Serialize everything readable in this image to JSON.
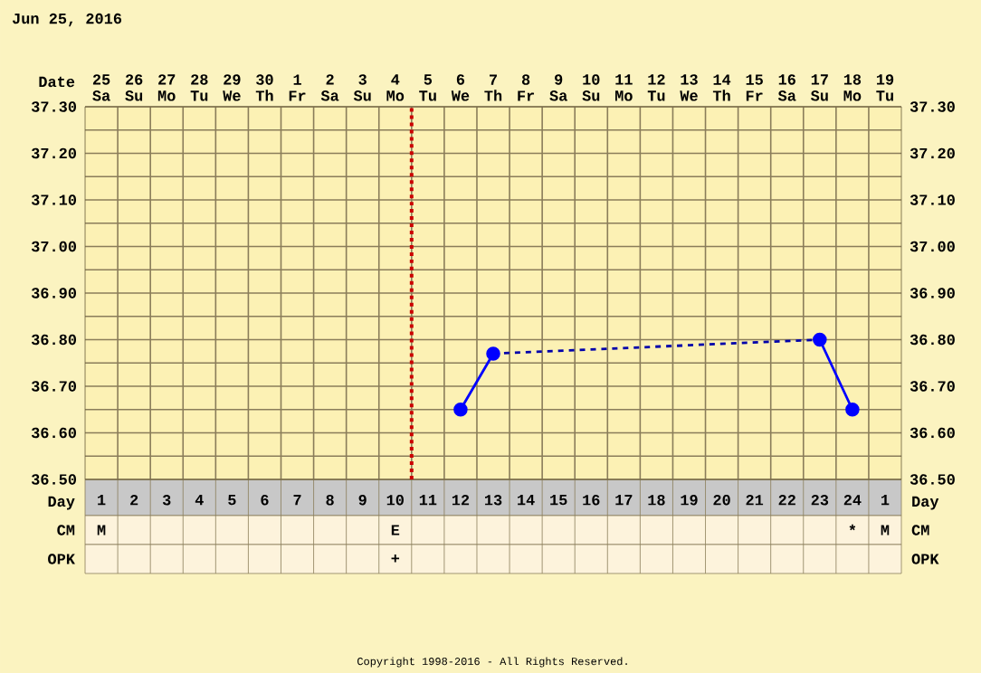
{
  "chart_data": [
    {
      "type": "line",
      "title": "Jun 25, 2016",
      "xlabel": "Day",
      "x2label": "Date",
      "categories": [
        "1",
        "2",
        "3",
        "4",
        "5",
        "6",
        "7",
        "8",
        "9",
        "10",
        "11",
        "12",
        "13",
        "14",
        "15",
        "16",
        "17",
        "18",
        "19",
        "20",
        "21",
        "22",
        "23",
        "24",
        "1"
      ],
      "series": [
        {
          "color": "#0000ff",
          "marker": "circle",
          "line_style": "solid",
          "values": [
            null,
            null,
            null,
            null,
            null,
            null,
            null,
            null,
            null,
            null,
            null,
            36.65,
            36.77,
            null,
            null,
            null,
            null,
            null,
            null,
            null,
            null,
            null,
            36.8,
            36.65,
            null
          ]
        },
        {
          "color": "#0000aa",
          "marker": "none",
          "line_style": "dashed",
          "x": [
            "13",
            "23"
          ],
          "values": [
            36.77,
            36.8
          ]
        }
      ],
      "x2lim": [
        "2016-06-24T12:00",
        "2016-07-19T12:00"
      ],
      "x2ticks": [
        {
          "value": "2016-06-25",
          "label": "25 Sa"
        },
        {
          "value": "2016-06-26",
          "label": "26 Su"
        },
        {
          "value": "2016-06-27",
          "label": "27 Mo"
        },
        {
          "value": "2016-06-28",
          "label": "28 Tu"
        },
        {
          "value": "2016-06-29",
          "label": "29 We"
        },
        {
          "value": "2016-06-30",
          "label": "30 Th"
        },
        {
          "value": "2016-07-01",
          "label": "1 Fr"
        },
        {
          "value": "2016-07-02",
          "label": "2 Sa"
        },
        {
          "value": "2016-07-03",
          "label": "3 Su"
        },
        {
          "value": "2016-07-04",
          "label": "4 Mo"
        },
        {
          "value": "2016-07-05",
          "label": "5 Tu"
        },
        {
          "value": "2016-07-06",
          "label": "6 We"
        },
        {
          "value": "2016-07-07",
          "label": "7 Th"
        },
        {
          "value": "2016-07-08",
          "label": "8 Fr"
        },
        {
          "value": "2016-07-09",
          "label": "9 Sa"
        },
        {
          "value": "2016-07-10",
          "label": "10 Su"
        },
        {
          "value": "2016-07-11",
          "label": "11 Mo"
        },
        {
          "value": "2016-07-12",
          "label": "12 Tu"
        },
        {
          "value": "2016-07-13",
          "label": "13 We"
        },
        {
          "value": "2016-07-14",
          "label": "14 Th"
        },
        {
          "value": "2016-07-15",
          "label": "15 Fr"
        },
        {
          "value": "2016-07-16",
          "label": "16 Sa"
        },
        {
          "value": "2016-07-17",
          "label": "17 Su"
        },
        {
          "value": "2016-07-18",
          "label": "18 Mo"
        },
        {
          "value": "2016-07-19",
          "label": "19 Tu"
        }
      ],
      "ylim": [
        36.5,
        37.3
      ],
      "yticks": [
        {
          "value": 36.5,
          "label": "36.50"
        },
        {
          "value": 36.6,
          "label": "36.60"
        },
        {
          "value": 36.7,
          "label": "36.70"
        },
        {
          "value": 36.8,
          "label": "36.80"
        },
        {
          "value": 36.9,
          "label": "36.90"
        },
        {
          "value": 37.0,
          "label": "37.00"
        },
        {
          "value": 37.1,
          "label": "37.10"
        },
        {
          "value": 37.2,
          "label": "37.20"
        },
        {
          "value": 37.3,
          "label": "37.30"
        }
      ],
      "y2lim": [
        36.5,
        37.3
      ],
      "y2ticks": [
        {
          "value": 36.5,
          "label": "36.50"
        },
        {
          "value": 36.6,
          "label": "36.60"
        },
        {
          "value": 36.7,
          "label": "36.70"
        },
        {
          "value": 36.8,
          "label": "36.80"
        },
        {
          "value": 36.9,
          "label": "36.90"
        },
        {
          "value": 37.0,
          "label": "37.00"
        },
        {
          "value": 37.1,
          "label": "37.10"
        },
        {
          "value": 37.2,
          "label": "37.20"
        },
        {
          "value": 37.3,
          "label": "37.30"
        }
      ],
      "ref_lines": [
        {
          "axis": "x2",
          "value": "2016-07-04T12:00",
          "color": "#cc0000",
          "line_style": "dashed"
        }
      ],
      "grid": true
    },
    {
      "type": "heatmap",
      "tick_labels": "y",
      "categories": [
        "1",
        "2",
        "3",
        "4",
        "5",
        "6",
        "7",
        "8",
        "9",
        "10",
        "11",
        "12",
        "13",
        "14",
        "15",
        "16",
        "17",
        "18",
        "19",
        "20",
        "21",
        "22",
        "23",
        "24",
        "1"
      ],
      "y_categories": [
        "CM",
        "OPK"
      ],
      "y2_categories": [
        "CM",
        "OPK"
      ],
      "cells": [
        [
          null,
          null,
          null,
          null,
          null,
          null,
          null,
          null,
          null,
          null,
          null,
          null,
          null,
          null,
          null,
          null,
          null,
          null,
          null,
          null,
          null,
          null,
          null,
          null,
          null
        ],
        [
          null,
          null,
          null,
          null,
          null,
          null,
          null,
          null,
          null,
          null,
          null,
          null,
          null,
          null,
          null,
          null,
          null,
          null,
          null,
          null,
          null,
          null,
          null,
          null,
          null
        ]
      ],
      "cell_labels": [
        [
          "M",
          null,
          null,
          null,
          null,
          null,
          null,
          null,
          null,
          "E",
          null,
          null,
          null,
          null,
          null,
          null,
          null,
          null,
          null,
          null,
          null,
          null,
          null,
          "*",
          "M"
        ],
        [
          null,
          null,
          null,
          null,
          null,
          null,
          null,
          null,
          null,
          "+",
          null,
          null,
          null,
          null,
          null,
          null,
          null,
          null,
          null,
          null,
          null,
          null,
          null,
          null,
          null
        ]
      ],
      "annotations": [
        "Copyright 1998-2016 - All Rights Reserved."
      ]
    }
  ]
}
